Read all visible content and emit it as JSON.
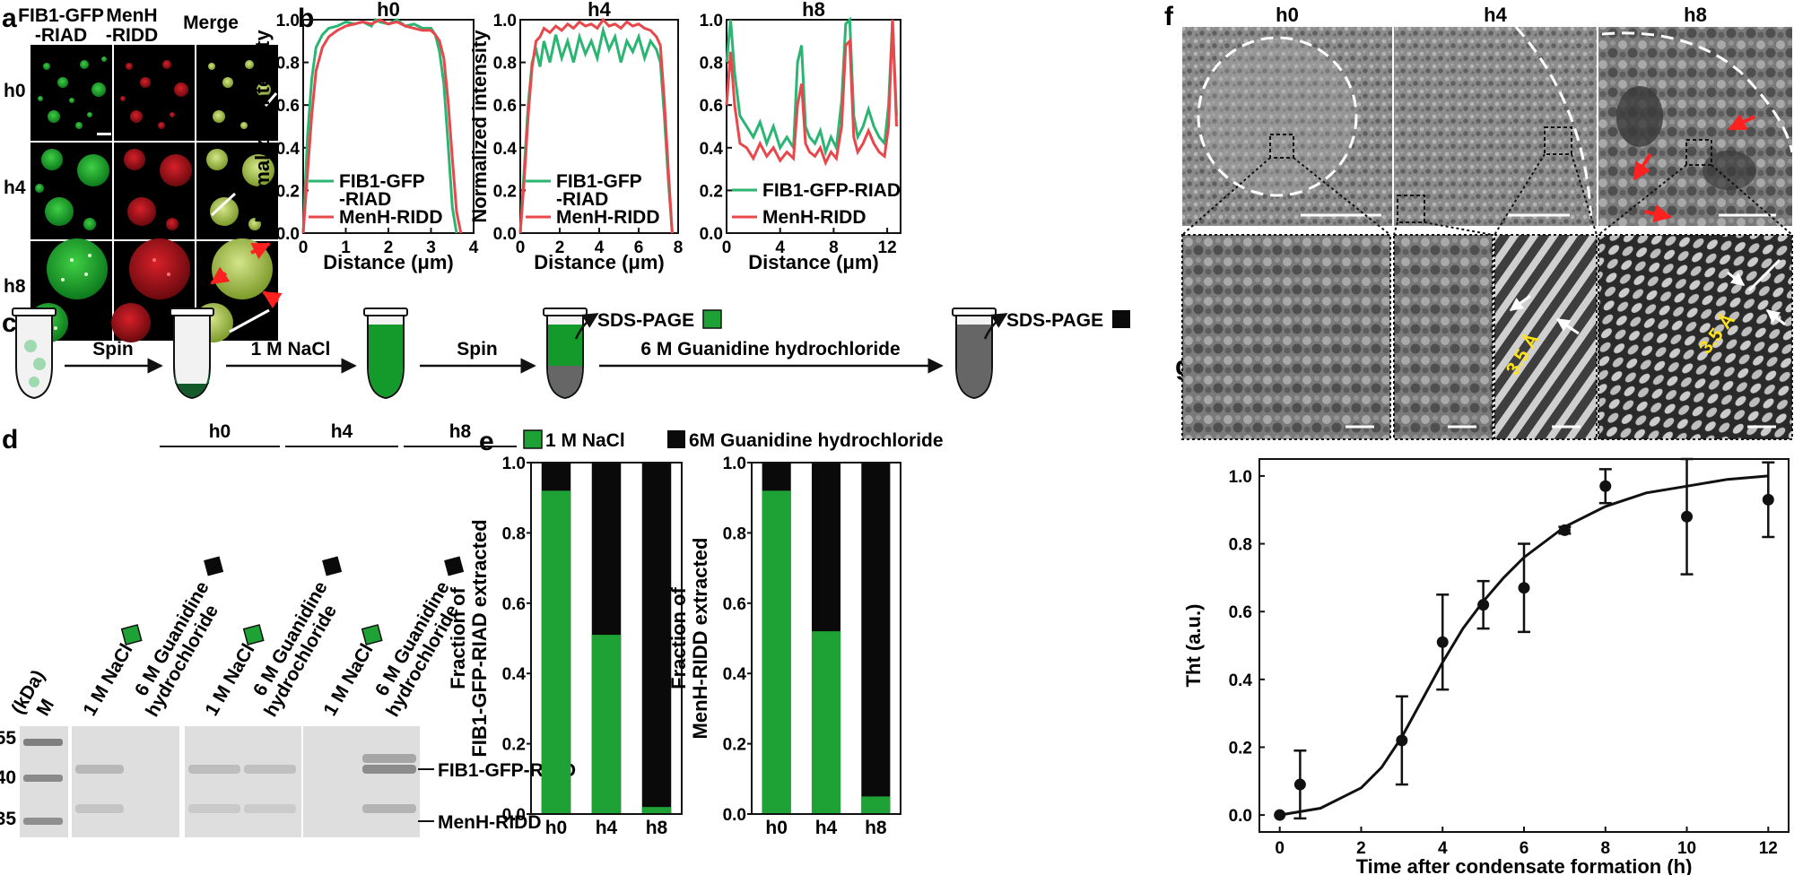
{
  "colors": {
    "gfp": "#2ab573",
    "menh": "#e8474b",
    "green_fill": "#1ea235",
    "black_fill": "#0a0a0a",
    "scale": "#ffffff",
    "arrow_red": "#ff2020",
    "spacing_label": "#ffe21a"
  },
  "panel_a": {
    "label": "a",
    "col_headers": [
      "FIB1-GFP\n-RIAD",
      "MenH\n-RIDD",
      "Merge"
    ],
    "row_labels": [
      "h0",
      "h4",
      "h8"
    ]
  },
  "panel_b": {
    "label": "b",
    "charts": [
      {
        "title": "h0",
        "xlabel": "Distance (μm)",
        "ylabel": "Normalized intensity",
        "xlim": [
          0,
          4
        ],
        "xticks": [
          0,
          1,
          2,
          3,
          4
        ],
        "ylim": [
          0,
          1
        ],
        "yticks": [
          "0.0",
          "0.2",
          "0.4",
          "0.6",
          "0.8",
          "1.0"
        ],
        "legend": [
          "FIB1-GFP\n-RIAD",
          "MenH-RIDD"
        ]
      },
      {
        "title": "h4",
        "xlabel": "Distance (μm)",
        "ylabel": "Normalized intensity",
        "xlim": [
          0,
          8
        ],
        "xticks": [
          0,
          2,
          4,
          6,
          8
        ],
        "ylim": [
          0,
          1
        ],
        "yticks": [
          "0.0",
          "0.2",
          "0.4",
          "0.6",
          "0.8",
          "1.0"
        ],
        "legend": [
          "FIB1-GFP\n-RIAD",
          "MenH-RIDD"
        ]
      },
      {
        "title": "h8",
        "xlabel": "Distance (μm)",
        "ylabel": "",
        "xlim": [
          0,
          13
        ],
        "xticks": [
          0,
          4,
          8,
          12
        ],
        "ylim": [
          0,
          1
        ],
        "yticks": [
          "0.0",
          "0.2",
          "0.4",
          "0.6",
          "0.8",
          "1.0"
        ],
        "legend": [
          "FIB1-GFP-RIAD",
          "MenH-RIDD"
        ]
      }
    ]
  },
  "panel_c": {
    "label": "c",
    "steps": [
      "Spin",
      "1 M NaCl",
      "Spin",
      "6 M Guanidine hydrochloride"
    ],
    "sds_labels": [
      "SDS-PAGE",
      "SDS-PAGE"
    ]
  },
  "panel_d": {
    "label": "d",
    "groups": [
      "h0",
      "h4",
      "h8"
    ],
    "lane_labels": [
      "1 M NaCl",
      "6 M Guanidine\nhydrochloride"
    ],
    "kda_label": "(kDa)",
    "marker_label": "M",
    "kda_values": [
      "55",
      "40",
      "35"
    ],
    "band_labels": [
      "FIB1-GFP-RIAD",
      "MenH-RIDD"
    ]
  },
  "panel_e": {
    "label": "e",
    "legend": [
      "1 M NaCl",
      "6M Guanidine hydrochloride"
    ],
    "yticks": [
      "0.0",
      "0.2",
      "0.4",
      "0.6",
      "0.8",
      "1.0"
    ],
    "charts": [
      {
        "ylabel": "Fraction of\nFIB1-GFP-RIAD extracted",
        "categories": [
          "h0",
          "h4",
          "h8"
        ],
        "values": [
          0.92,
          0.51,
          0.02
        ]
      },
      {
        "ylabel": "Fraction of\nMenH-RIDD extracted",
        "categories": [
          "h0",
          "h4",
          "h8"
        ],
        "values": [
          0.92,
          0.52,
          0.05
        ]
      }
    ]
  },
  "panel_f": {
    "label": "f",
    "titles": [
      "h0",
      "h4",
      "h8"
    ],
    "spacing": [
      "3.5 Å",
      "3.5 Å"
    ]
  },
  "panel_g": {
    "label": "g",
    "ylabel": "Tht (a.u.)",
    "xlabel": "Time after condensate formation (h)"
  },
  "chart_data": [
    {
      "type": "line",
      "title": "h0",
      "xlabel": "Distance (μm)",
      "ylabel": "Normalized intensity",
      "xlim": [
        0,
        4
      ],
      "ylim": [
        0,
        1
      ],
      "series": [
        {
          "name": "FIB1-GFP-RIAD",
          "x": [
            0,
            0.1,
            0.2,
            0.3,
            0.45,
            0.6,
            0.8,
            1.0,
            1.2,
            1.4,
            1.6,
            1.7,
            1.8,
            2.0,
            2.2,
            2.4,
            2.6,
            2.8,
            3.0,
            3.1,
            3.2,
            3.3,
            3.4,
            3.5,
            3.6
          ],
          "y": [
            0.0,
            0.45,
            0.72,
            0.87,
            0.93,
            0.96,
            0.97,
            0.99,
            0.98,
            0.99,
            0.97,
            1.0,
            0.99,
            0.98,
            1.0,
            0.97,
            0.98,
            0.96,
            0.96,
            0.93,
            0.85,
            0.7,
            0.42,
            0.12,
            0.0
          ]
        },
        {
          "name": "MenH-RIDD",
          "x": [
            0,
            0.1,
            0.2,
            0.3,
            0.45,
            0.6,
            0.8,
            1.0,
            1.2,
            1.4,
            1.6,
            1.7,
            1.8,
            2.0,
            2.2,
            2.4,
            2.6,
            2.8,
            3.0,
            3.1,
            3.2,
            3.3,
            3.4,
            3.5,
            3.6,
            3.7
          ],
          "y": [
            0.0,
            0.28,
            0.55,
            0.76,
            0.87,
            0.92,
            0.95,
            0.97,
            0.98,
            0.99,
            0.98,
            0.99,
            1.0,
            0.98,
            0.99,
            0.97,
            0.96,
            0.95,
            0.95,
            0.93,
            0.9,
            0.82,
            0.62,
            0.35,
            0.1,
            0.0
          ]
        }
      ]
    },
    {
      "type": "line",
      "title": "h4",
      "xlabel": "Distance (μm)",
      "ylabel": "Normalized intensity",
      "xlim": [
        0,
        8
      ],
      "ylim": [
        0,
        1
      ],
      "series": [
        {
          "name": "FIB1-GFP-RIAD",
          "x": [
            0,
            0.2,
            0.4,
            0.6,
            0.8,
            1.0,
            1.2,
            1.5,
            1.8,
            2.1,
            2.4,
            2.7,
            3.0,
            3.3,
            3.6,
            3.9,
            4.2,
            4.5,
            4.8,
            5.1,
            5.4,
            5.7,
            6.0,
            6.3,
            6.6,
            6.9,
            7.1,
            7.3,
            7.5,
            7.7
          ],
          "y": [
            0.0,
            0.3,
            0.6,
            0.8,
            0.86,
            0.78,
            0.9,
            0.8,
            0.93,
            0.82,
            0.9,
            0.8,
            0.92,
            0.84,
            0.9,
            0.82,
            0.95,
            0.86,
            0.92,
            0.8,
            0.9,
            0.85,
            0.92,
            0.82,
            0.9,
            0.86,
            0.8,
            0.55,
            0.25,
            0.0
          ]
        },
        {
          "name": "MenH-RIDD",
          "x": [
            0,
            0.2,
            0.4,
            0.6,
            0.8,
            1.0,
            1.2,
            1.5,
            1.8,
            2.1,
            2.4,
            2.7,
            3.0,
            3.3,
            3.6,
            3.9,
            4.2,
            4.5,
            4.8,
            5.1,
            5.4,
            5.7,
            6.0,
            6.3,
            6.6,
            6.9,
            7.1,
            7.3,
            7.5,
            7.7
          ],
          "y": [
            0.0,
            0.25,
            0.55,
            0.78,
            0.9,
            0.92,
            0.96,
            0.94,
            0.97,
            0.95,
            0.98,
            0.96,
            0.99,
            0.97,
            0.98,
            0.96,
            1.0,
            0.97,
            0.98,
            0.96,
            0.99,
            0.97,
            0.98,
            0.96,
            0.95,
            0.92,
            0.88,
            0.62,
            0.3,
            0.0
          ]
        }
      ]
    },
    {
      "type": "line",
      "title": "h8",
      "xlabel": "Distance (μm)",
      "ylabel": "",
      "xlim": [
        0,
        13
      ],
      "ylim": [
        0,
        1
      ],
      "series": [
        {
          "name": "FIB1-GFP-RIAD",
          "x": [
            0,
            0.3,
            0.6,
            1.0,
            1.5,
            2.0,
            2.5,
            3.0,
            3.5,
            4.0,
            4.5,
            5.0,
            5.3,
            5.6,
            5.9,
            6.2,
            6.6,
            7.0,
            7.4,
            7.8,
            8.2,
            8.6,
            8.9,
            9.2,
            9.5,
            9.8,
            10.2,
            10.6,
            11.0,
            11.4,
            11.8,
            12.1,
            12.4,
            12.7
          ],
          "y": [
            0.8,
            1.0,
            0.75,
            0.55,
            0.5,
            0.45,
            0.52,
            0.42,
            0.5,
            0.4,
            0.45,
            0.4,
            0.8,
            0.88,
            0.5,
            0.45,
            0.42,
            0.48,
            0.38,
            0.45,
            0.4,
            0.62,
            0.98,
            1.0,
            0.55,
            0.45,
            0.5,
            0.58,
            0.5,
            0.45,
            0.42,
            0.6,
            1.0,
            0.55
          ]
        },
        {
          "name": "MenH-RIDD",
          "x": [
            0,
            0.3,
            0.6,
            1.0,
            1.5,
            2.0,
            2.5,
            3.0,
            3.5,
            4.0,
            4.5,
            5.0,
            5.3,
            5.6,
            5.9,
            6.2,
            6.6,
            7.0,
            7.4,
            7.8,
            8.2,
            8.6,
            8.9,
            9.2,
            9.5,
            9.8,
            10.2,
            10.6,
            11.0,
            11.4,
            11.8,
            12.1,
            12.4,
            12.7
          ],
          "y": [
            0.6,
            0.85,
            0.6,
            0.42,
            0.4,
            0.35,
            0.42,
            0.36,
            0.4,
            0.34,
            0.38,
            0.35,
            0.6,
            0.7,
            0.42,
            0.38,
            0.36,
            0.4,
            0.33,
            0.38,
            0.35,
            0.5,
            0.88,
            0.9,
            0.45,
            0.38,
            0.42,
            0.48,
            0.42,
            0.38,
            0.36,
            0.5,
            1.0,
            0.5
          ]
        }
      ]
    },
    {
      "type": "bar",
      "title": "FIB1-GFP-RIAD",
      "categories": [
        "h0",
        "h4",
        "h8"
      ],
      "ylim": [
        0,
        1
      ],
      "series": [
        {
          "name": "1 M NaCl",
          "values": [
            0.92,
            0.51,
            0.02
          ]
        },
        {
          "name": "6M Guanidine hydrochloride",
          "values": [
            0.08,
            0.49,
            0.98
          ]
        }
      ]
    },
    {
      "type": "bar",
      "title": "MenH-RIDD",
      "categories": [
        "h0",
        "h4",
        "h8"
      ],
      "ylim": [
        0,
        1
      ],
      "series": [
        {
          "name": "1 M NaCl",
          "values": [
            0.92,
            0.52,
            0.05
          ]
        },
        {
          "name": "6M Guanidine hydrochloride",
          "values": [
            0.08,
            0.48,
            0.95
          ]
        }
      ]
    },
    {
      "type": "scatter",
      "title": "",
      "xlabel": "Time after condensate formation (h)",
      "ylabel": "Tht (a.u.)",
      "xlim": [
        -0.5,
        12.5
      ],
      "ylim": [
        -0.05,
        1.05
      ],
      "xticks": [
        0,
        2,
        4,
        6,
        8,
        10,
        12
      ],
      "yticks": [
        "0.0",
        "0.2",
        "0.4",
        "0.6",
        "0.8",
        "1.0"
      ],
      "series": [
        {
          "name": "Tht",
          "x": [
            0,
            0.5,
            3,
            4,
            5,
            6,
            7,
            8,
            10,
            12
          ],
          "y": [
            0.0,
            0.09,
            0.22,
            0.51,
            0.62,
            0.67,
            0.84,
            0.97,
            0.88,
            0.93
          ],
          "err": [
            0,
            0.1,
            0.13,
            0.14,
            0.07,
            0.13,
            0.01,
            0.05,
            0.17,
            0.11
          ]
        },
        {
          "name": "fit",
          "x": [
            0,
            1,
            2,
            2.5,
            3,
            3.5,
            4,
            4.5,
            5,
            5.5,
            6,
            7,
            8,
            9,
            10,
            11,
            12
          ],
          "y": [
            0.0,
            0.02,
            0.08,
            0.14,
            0.23,
            0.34,
            0.45,
            0.55,
            0.63,
            0.7,
            0.76,
            0.85,
            0.91,
            0.95,
            0.97,
            0.99,
            1.0
          ]
        }
      ]
    }
  ]
}
